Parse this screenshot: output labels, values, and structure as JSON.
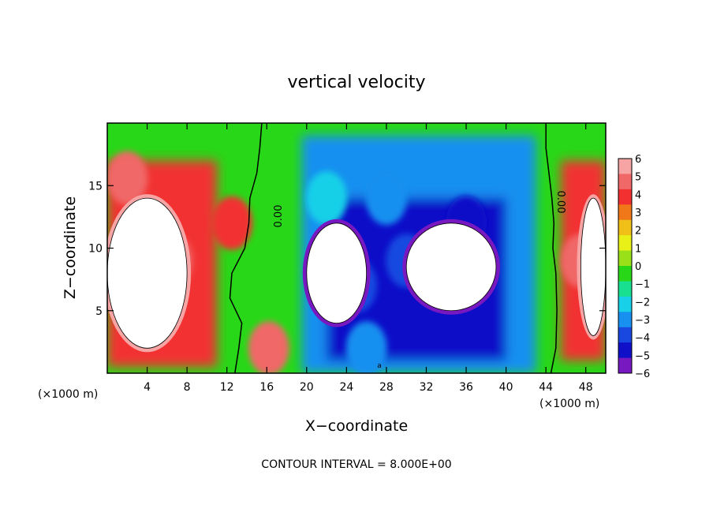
{
  "chart_data": {
    "type": "heatmap",
    "title": "vertical velocity",
    "xlabel": "X−coordinate",
    "ylabel": "Z−coordinate",
    "x_unit": "(×1000 m)",
    "y_unit": "(×1000 m)",
    "xlim": [
      0,
      50
    ],
    "ylim": [
      0,
      20
    ],
    "x_ticks": [
      "4",
      "8",
      "12",
      "16",
      "20",
      "24",
      "28",
      "32",
      "36",
      "40",
      "44",
      "48"
    ],
    "x_tick_values": [
      4,
      8,
      12,
      16,
      20,
      24,
      28,
      32,
      36,
      40,
      44,
      48
    ],
    "y_ticks": [
      "5",
      "10",
      "15"
    ],
    "y_tick_values": [
      5,
      10,
      15
    ],
    "colorbar": {
      "labels": [
        "6",
        "5",
        "4",
        "3",
        "2",
        "1",
        "0",
        "−1",
        "−2",
        "−3",
        "−4",
        "−5",
        "−6"
      ],
      "values": [
        6,
        5,
        4,
        3,
        2,
        1,
        0,
        -1,
        -2,
        -3,
        -4,
        -5,
        -6
      ],
      "colors": [
        "#f6a4a4",
        "#f06868",
        "#f23030",
        "#f07818",
        "#f0c018",
        "#e8f018",
        "#9ae018",
        "#28d818",
        "#18e090",
        "#18d0e8",
        "#1890f0",
        "#1848e0",
        "#1010c8",
        "#7818c0"
      ]
    },
    "contour_labels": [
      "0.00",
      "0.00",
      "a"
    ],
    "footer": "CONTOUR INTERVAL = 8.000E+00",
    "field_features": [
      {
        "kind": "updraft",
        "x": 2,
        "y": 15.6,
        "value": 5
      },
      {
        "kind": "updraft",
        "x": 6.5,
        "y": 9,
        "value": 5
      },
      {
        "kind": "updraft",
        "x": 12.5,
        "y": 12,
        "value": 4
      },
      {
        "kind": "updraft",
        "x": 16.2,
        "y": 2,
        "value": 5
      },
      {
        "kind": "updraft",
        "x": 47.5,
        "y": 9,
        "value": 5
      },
      {
        "kind": "downdraft",
        "x": 30,
        "y": 9,
        "value": -5
      },
      {
        "kind": "downdraft",
        "x": 25,
        "y": 7,
        "value": -5
      },
      {
        "kind": "downdraft",
        "x": 36,
        "y": 12,
        "value": -6
      },
      {
        "kind": "downdraft",
        "x": 28,
        "y": 14,
        "value": -4
      },
      {
        "kind": "downdraft",
        "x": 22,
        "y": 14,
        "value": -3
      },
      {
        "kind": "downdraft",
        "x": 26,
        "y": 2,
        "value": -4
      }
    ],
    "saturated_regions": [
      {
        "sign": "positive",
        "x_range": [
          0,
          8
        ],
        "y_range": [
          2,
          14
        ]
      },
      {
        "sign": "positive",
        "x_range": [
          47.5,
          50
        ],
        "y_range": [
          3,
          14
        ]
      },
      {
        "sign": "negative",
        "x_range": [
          20,
          26
        ],
        "y_range": [
          4,
          12
        ]
      },
      {
        "sign": "negative",
        "x_range": [
          30,
          39
        ],
        "y_range": [
          5,
          12
        ]
      }
    ]
  }
}
